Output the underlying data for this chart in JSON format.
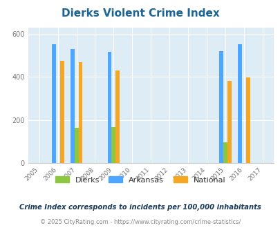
{
  "title": "Dierks Violent Crime Index",
  "years": [
    2005,
    2006,
    2007,
    2008,
    2009,
    2010,
    2011,
    2012,
    2013,
    2014,
    2015,
    2016,
    2017
  ],
  "dierks": {
    "2007": 162,
    "2009": 168,
    "2015": 95
  },
  "arkansas": {
    "2006": 551,
    "2007": 528,
    "2009": 515,
    "2015": 519,
    "2016": 551
  },
  "national": {
    "2006": 474,
    "2007": 467,
    "2009": 430,
    "2015": 383,
    "2016": 397
  },
  "dierks_color": "#8dc63f",
  "arkansas_color": "#4da6ff",
  "national_color": "#f5a623",
  "plot_bg": "#deedf5",
  "ylim": [
    0,
    630
  ],
  "yticks": [
    0,
    200,
    400,
    600
  ],
  "subtitle": "Crime Index corresponds to incidents per 100,000 inhabitants",
  "footer": "© 2025 CityRating.com - https://www.cityrating.com/crime-statistics/",
  "bar_width": 0.22
}
